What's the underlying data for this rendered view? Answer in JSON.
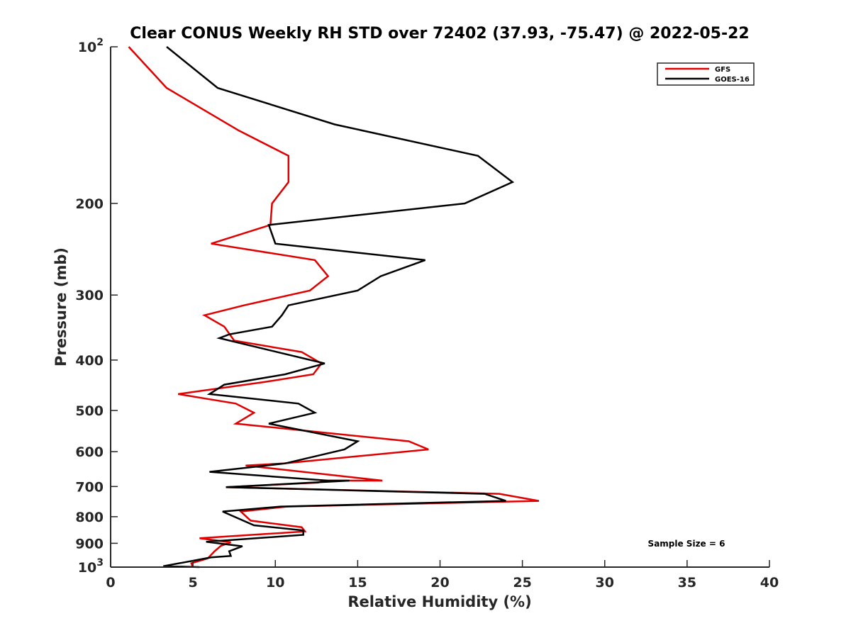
{
  "chart_data": {
    "type": "line",
    "title": "Clear CONUS Weekly RH STD over 72402 (37.93, -75.47) @ 2022-05-22",
    "xlabel": "Relative Humidity (%)",
    "ylabel": "Pressure (mb)",
    "xlim": [
      0,
      40
    ],
    "ylim": [
      100,
      1000
    ],
    "yscale": "log",
    "y_reversed": true,
    "grid": false,
    "xticks": [
      "0",
      "5",
      "10",
      "15",
      "20",
      "25",
      "30",
      "35",
      "40"
    ],
    "xtick_values": [
      0,
      5,
      10,
      15,
      20,
      25,
      30,
      35,
      40
    ],
    "yticks": [
      {
        "value": 100,
        "base": "10",
        "exp": "2"
      },
      {
        "value": 200,
        "label": "200"
      },
      {
        "value": 300,
        "label": "300"
      },
      {
        "value": 400,
        "label": "400"
      },
      {
        "value": 500,
        "label": "500"
      },
      {
        "value": 600,
        "label": "600"
      },
      {
        "value": 700,
        "label": "700"
      },
      {
        "value": 800,
        "label": "800"
      },
      {
        "value": 900,
        "label": "900"
      },
      {
        "value": 1000,
        "base": "10",
        "exp": "3"
      }
    ],
    "legend": {
      "placement": "top-right",
      "entries": [
        "GFS",
        "GOES-16"
      ]
    },
    "annotation": "Sample Size = 6",
    "series": [
      {
        "name": "GFS",
        "color": "#e00000",
        "points": [
          [
            1.1,
            100
          ],
          [
            3.4,
            120
          ],
          [
            7.8,
            145
          ],
          [
            10.8,
            162
          ],
          [
            10.8,
            182
          ],
          [
            9.8,
            200
          ],
          [
            9.7,
            220
          ],
          [
            6.1,
            239
          ],
          [
            12.4,
            257
          ],
          [
            13.2,
            276
          ],
          [
            12.1,
            294
          ],
          [
            8.1,
            314
          ],
          [
            5.7,
            328
          ],
          [
            6.9,
            345
          ],
          [
            7.5,
            367
          ],
          [
            11.6,
            386
          ],
          [
            12.8,
            406
          ],
          [
            12.3,
            426
          ],
          [
            9.3,
            441
          ],
          [
            4.1,
            465
          ],
          [
            7.6,
            485
          ],
          [
            8.7,
            505
          ],
          [
            7.6,
            530
          ],
          [
            18.1,
            573
          ],
          [
            19.3,
            594
          ],
          [
            10.5,
            632
          ],
          [
            8.2,
            638
          ],
          [
            16.5,
            682
          ],
          [
            13.0,
            682
          ],
          [
            12.6,
            688
          ],
          [
            7.0,
            702
          ],
          [
            23.6,
            723
          ],
          [
            26.0,
            746
          ],
          [
            10.7,
            765
          ],
          [
            7.9,
            782
          ],
          [
            8.5,
            814
          ],
          [
            11.6,
            838
          ],
          [
            11.8,
            854
          ],
          [
            5.4,
            880
          ],
          [
            7.3,
            896
          ],
          [
            6.7,
            910
          ],
          [
            6.3,
            933
          ],
          [
            5.9,
            962
          ],
          [
            4.9,
            983
          ],
          [
            5.0,
            1000
          ]
        ]
      },
      {
        "name": "GOES-16",
        "color": "#000000",
        "points": [
          [
            3.4,
            100
          ],
          [
            6.5,
            120
          ],
          [
            13.6,
            141
          ],
          [
            22.3,
            162
          ],
          [
            24.4,
            182
          ],
          [
            21.5,
            200
          ],
          [
            9.6,
            220
          ],
          [
            10.0,
            239
          ],
          [
            19.1,
            257
          ],
          [
            16.4,
            276
          ],
          [
            15.0,
            294
          ],
          [
            10.8,
            314
          ],
          [
            10.4,
            328
          ],
          [
            9.8,
            345
          ],
          [
            7.2,
            357
          ],
          [
            6.6,
            363
          ],
          [
            9.5,
            382
          ],
          [
            13.0,
            406
          ],
          [
            10.6,
            426
          ],
          [
            6.9,
            446
          ],
          [
            6.0,
            465
          ],
          [
            11.4,
            485
          ],
          [
            12.4,
            505
          ],
          [
            9.6,
            530
          ],
          [
            15.0,
            573
          ],
          [
            14.2,
            594
          ],
          [
            10.6,
            632
          ],
          [
            6.0,
            656
          ],
          [
            13.2,
            682
          ],
          [
            14.5,
            682
          ],
          [
            7.0,
            702
          ],
          [
            22.7,
            723
          ],
          [
            24.0,
            746
          ],
          [
            10.3,
            765
          ],
          [
            6.8,
            782
          ],
          [
            8.7,
            831
          ],
          [
            11.7,
            850
          ],
          [
            11.7,
            867
          ],
          [
            5.8,
            894
          ],
          [
            8.0,
            912
          ],
          [
            7.2,
            932
          ],
          [
            7.3,
            952
          ],
          [
            6.1,
            958
          ],
          [
            3.2,
            996
          ],
          [
            5.4,
            1000
          ]
        ]
      }
    ]
  }
}
